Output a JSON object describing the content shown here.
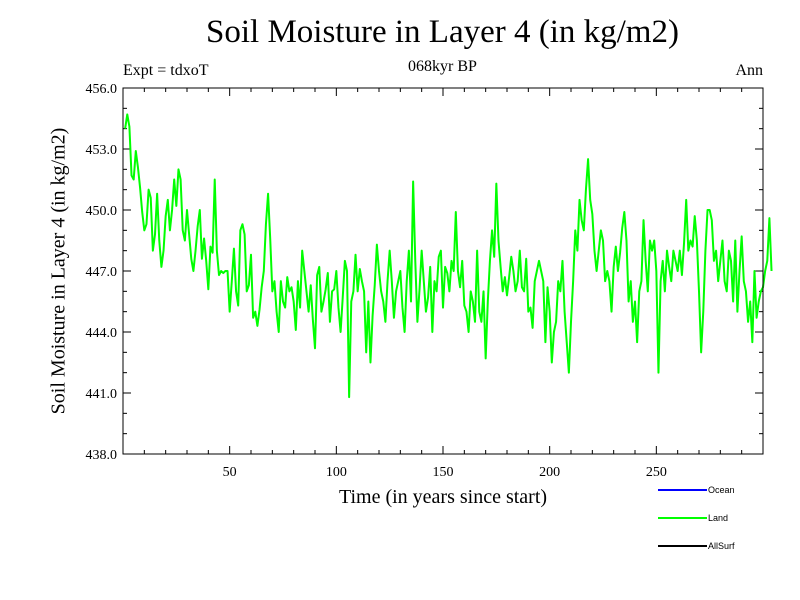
{
  "chart_data": {
    "type": "line",
    "title": "Soil Moisture in Layer 4 (in kg/m2)",
    "subtitle": "068kyr BP",
    "left_label": "Expt = tdxoT",
    "right_label": "Ann",
    "xlabel": "Time (in years since start)",
    "ylabel": "Soil Moisture in Layer 4 (in kg/m2)",
    "xlim": [
      0,
      300
    ],
    "ylim": [
      438.0,
      456.0
    ],
    "x_ticks": [
      50,
      100,
      150,
      200,
      250
    ],
    "x_tick_labels": [
      "50",
      "100",
      "150",
      "200",
      "250"
    ],
    "y_ticks": [
      438.0,
      441.0,
      444.0,
      447.0,
      450.0,
      453.0,
      456.0
    ],
    "y_tick_labels": [
      "438.0",
      "441.0",
      "444.0",
      "447.0",
      "450.0",
      "453.0",
      "456.0"
    ],
    "grid": false,
    "legend_position": "bottom-right",
    "series": [
      {
        "name": "Ocean",
        "color": "#0000ff",
        "values": []
      },
      {
        "name": "Land",
        "color": "#00ff00",
        "x_start": 1,
        "x_step": 1,
        "values": [
          454.0,
          454.7,
          454.1,
          451.7,
          451.5,
          452.9,
          452.1,
          451.1,
          449.9,
          449.0,
          449.3,
          451.0,
          450.6,
          448.0,
          448.8,
          450.8,
          448.5,
          447.2,
          448.0,
          449.7,
          450.5,
          449.0,
          450.0,
          451.5,
          450.2,
          452.0,
          451.5,
          449.0,
          448.5,
          450.0,
          448.8,
          447.6,
          447.0,
          448.0,
          449.2,
          450.0,
          447.6,
          448.6,
          447.5,
          446.1,
          448.2,
          447.9,
          451.5,
          448.0,
          446.8,
          447.0,
          446.9,
          447.0,
          447.0,
          445.0,
          446.5,
          448.1,
          446.0,
          445.3,
          449.0,
          449.3,
          448.8,
          446.0,
          446.3,
          447.8,
          444.7,
          445.0,
          444.3,
          445.1,
          446.2,
          447.0,
          449.3,
          450.8,
          448.6,
          446.0,
          446.5,
          445.0,
          444.0,
          446.5,
          445.5,
          445.2,
          446.7,
          446.0,
          446.2,
          445.5,
          444.1,
          446.5,
          445.2,
          448.0,
          447.0,
          446.0,
          445.0,
          446.3,
          444.6,
          443.2,
          446.8,
          447.2,
          445.0,
          445.5,
          446.1,
          446.9,
          444.5,
          446.0,
          446.1,
          447.0,
          445.2,
          444.0,
          445.7,
          447.5,
          447.0,
          440.8,
          445.5,
          446.0,
          447.8,
          446.0,
          447.1,
          446.5,
          446.0,
          443.0,
          445.5,
          442.5,
          444.8,
          446.3,
          448.3,
          447.0,
          446.0,
          445.5,
          444.5,
          446.5,
          448.0,
          446.5,
          444.7,
          446.0,
          446.5,
          447.0,
          445.2,
          444.0,
          446.5,
          448.0,
          445.5,
          451.4,
          447.5,
          444.5,
          446.1,
          448.0,
          446.5,
          445.0,
          445.7,
          447.2,
          444.0,
          446.5,
          446.0,
          447.7,
          448.0,
          445.2,
          447.2,
          446.9,
          446.0,
          447.5,
          447.0,
          449.9,
          447.0,
          446.2,
          447.5,
          445.3,
          445.0,
          444.0,
          446.0,
          445.5,
          444.5,
          448.0,
          445.0,
          444.5,
          446.0,
          442.7,
          445.5,
          447.5,
          449.0,
          447.7,
          451.3,
          448.5,
          447.2,
          446.0,
          446.7,
          445.8,
          446.7,
          447.7,
          447.0,
          446.0,
          446.5,
          448.0,
          446.2,
          446.0,
          447.6,
          445.0,
          445.2,
          444.2,
          446.5,
          447.0,
          447.5,
          447.0,
          446.5,
          443.5,
          446.2,
          445.0,
          442.5,
          444.0,
          444.5,
          446.5,
          446.0,
          447.5,
          445.0,
          443.5,
          442.0,
          444.5,
          446.5,
          449.0,
          448.0,
          450.5,
          449.5,
          449.0,
          451.0,
          452.5,
          450.5,
          449.8,
          448.0,
          447.0,
          448.0,
          449.0,
          448.5,
          446.5,
          447.0,
          446.5,
          445.0,
          447.2,
          448.2,
          447.0,
          447.9,
          449.1,
          449.9,
          448.5,
          445.5,
          446.5,
          444.5,
          445.5,
          443.5,
          446.0,
          446.5,
          449.5,
          447.5,
          446.0,
          448.5,
          448.0,
          448.5,
          447.0,
          442.0,
          446.5,
          447.5,
          446.0,
          448.0,
          447.2,
          446.5,
          448.0,
          447.5,
          447.0,
          448.0,
          446.8,
          448.4,
          450.5,
          448.0,
          448.5,
          448.2,
          449.7,
          448.5,
          446.0,
          443.0,
          445.0,
          448.0,
          450.0,
          450.0,
          449.5,
          447.5,
          448.0,
          446.5,
          447.5,
          448.5,
          446.5,
          446.0,
          448.0,
          447.5,
          445.5,
          448.5,
          445.0,
          447.0,
          448.7,
          446.5,
          446.0,
          444.5,
          445.5,
          443.5,
          447.0,
          444.7,
          445.5,
          446.0,
          446.2,
          447.0,
          447.5,
          449.6,
          447.0
        ]
      },
      {
        "name": "AllSurf",
        "color": "#000000",
        "values": []
      }
    ]
  }
}
